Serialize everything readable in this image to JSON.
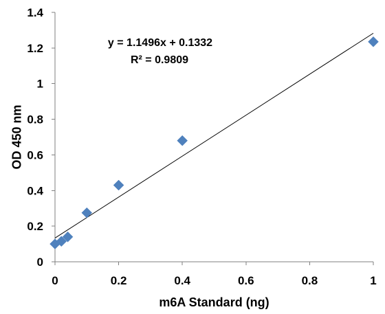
{
  "chart_data": {
    "type": "scatter",
    "title": "",
    "xlabel": "m6A Standard (ng)",
    "ylabel": "OD 450 nm",
    "xlim": [
      0,
      1
    ],
    "ylim": [
      0,
      1.4
    ],
    "x_ticks": [
      "0",
      "0.2",
      "0.4",
      "0.6",
      "0.8",
      "1"
    ],
    "y_ticks": [
      "0",
      "0.2",
      "0.4",
      "0.6",
      "0.8",
      "1",
      "1.2",
      "1.4"
    ],
    "grid": false,
    "legend": "none",
    "series": [
      {
        "color": "#4F81BD",
        "marker": "diamond",
        "points": [
          {
            "x": 0,
            "y": 0.1
          },
          {
            "x": 0.02,
            "y": 0.115
          },
          {
            "x": 0.04,
            "y": 0.14
          },
          {
            "x": 0.1,
            "y": 0.275
          },
          {
            "x": 0.2,
            "y": 0.43
          },
          {
            "x": 0.4,
            "y": 0.68
          },
          {
            "x": 1,
            "y": 1.235
          }
        ]
      }
    ],
    "trendline": {
      "type": "linear",
      "slope": 1.1496,
      "intercept": 0.1332,
      "color": "#000000",
      "equation_label": "y = 1.1496x + 0.1332",
      "r2_label": "R² = 0.9809"
    }
  }
}
